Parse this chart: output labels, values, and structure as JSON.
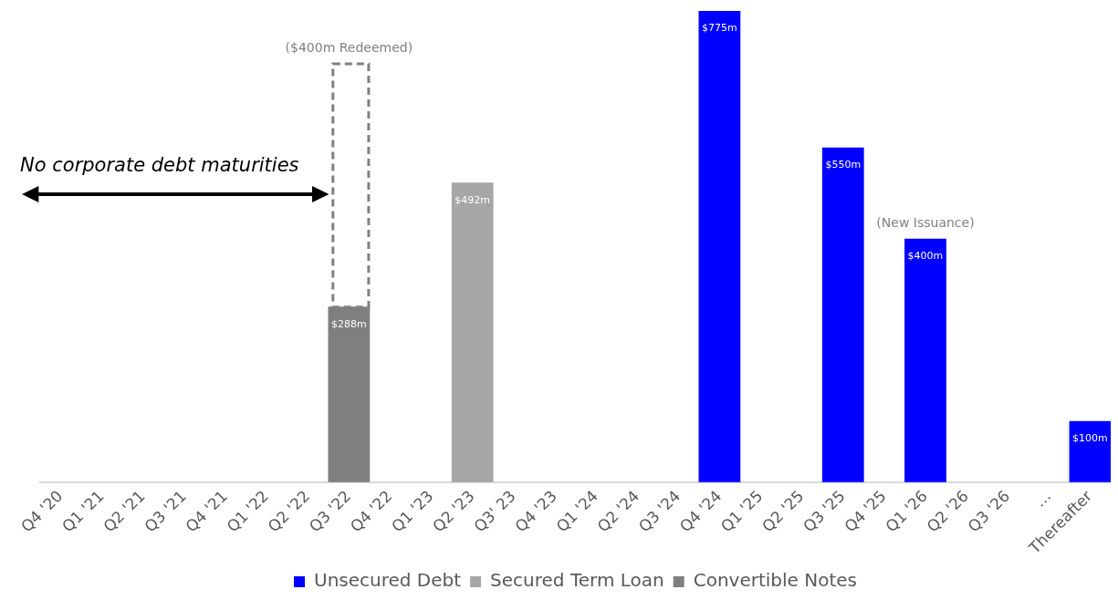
{
  "chart_data": {
    "type": "bar",
    "stacked": true,
    "legend": "bottom",
    "grid": false,
    "categories": [
      "Q4 '20",
      "Q1 '21",
      "Q2 '21",
      "Q3 '21",
      "Q4 '21",
      "Q1 '22",
      "Q2 '22",
      "Q3 '22",
      "Q4 '22",
      "Q1 '23",
      "Q2 '23",
      "Q3' 23",
      "Q4 '23",
      "Q1 '24",
      "Q2 '24",
      "Q3 '24",
      "Q4 '24",
      "Q1 '25",
      "Q2 '25",
      "Q3 '25",
      "Q4 '25",
      "Q1 '26",
      "Q2 '26",
      "Q3 '26",
      "…",
      "Thereafter"
    ],
    "series": [
      {
        "name": "Unsecured Debt",
        "color": "#0000ff",
        "values": [
          null,
          null,
          null,
          null,
          null,
          null,
          null,
          null,
          null,
          null,
          null,
          null,
          null,
          null,
          null,
          null,
          775,
          null,
          null,
          550,
          null,
          400,
          null,
          null,
          null,
          100
        ],
        "value_labels": [
          null,
          null,
          null,
          null,
          null,
          null,
          null,
          null,
          null,
          null,
          null,
          null,
          null,
          null,
          null,
          null,
          "$775m",
          null,
          null,
          "$550m",
          null,
          "$400m",
          null,
          null,
          null,
          "$100m"
        ]
      },
      {
        "name": "Secured Term Loan",
        "color": "#a6a6a6",
        "values": [
          null,
          null,
          null,
          null,
          null,
          null,
          null,
          null,
          null,
          null,
          492,
          null,
          null,
          null,
          null,
          null,
          null,
          null,
          null,
          null,
          null,
          null,
          null,
          null,
          null,
          null
        ],
        "value_labels": [
          null,
          null,
          null,
          null,
          null,
          null,
          null,
          null,
          null,
          null,
          "$492m",
          null,
          null,
          null,
          null,
          null,
          null,
          null,
          null,
          null,
          null,
          null,
          null,
          null,
          null,
          null
        ]
      },
      {
        "name": "Convertible Notes",
        "color": "#7f7f7f",
        "values": [
          null,
          null,
          null,
          null,
          null,
          null,
          null,
          288,
          null,
          null,
          null,
          null,
          null,
          null,
          null,
          null,
          null,
          null,
          null,
          null,
          null,
          null,
          null,
          null,
          null,
          null
        ],
        "value_labels": [
          null,
          null,
          null,
          null,
          null,
          null,
          null,
          "$288m",
          null,
          null,
          null,
          null,
          null,
          null,
          null,
          null,
          null,
          null,
          null,
          null,
          null,
          null,
          null,
          null,
          null,
          null
        ]
      },
      {
        "color": "#808080",
        "line_style": "dashed",
        "values": [
          null,
          null,
          null,
          null,
          null,
          null,
          null,
          400,
          null,
          null,
          null,
          null,
          null,
          null,
          null,
          null,
          null,
          null,
          null,
          null,
          null,
          null,
          null,
          null,
          null,
          null
        ]
      }
    ],
    "annotations": [
      "No corporate debt maturities",
      {
        "text": "($400m Redeemed)",
        "x": "Q3 '22",
        "y": 688
      },
      {
        "text": "(New Issuance)",
        "x": "Q1 '26",
        "y": 400
      }
    ]
  }
}
